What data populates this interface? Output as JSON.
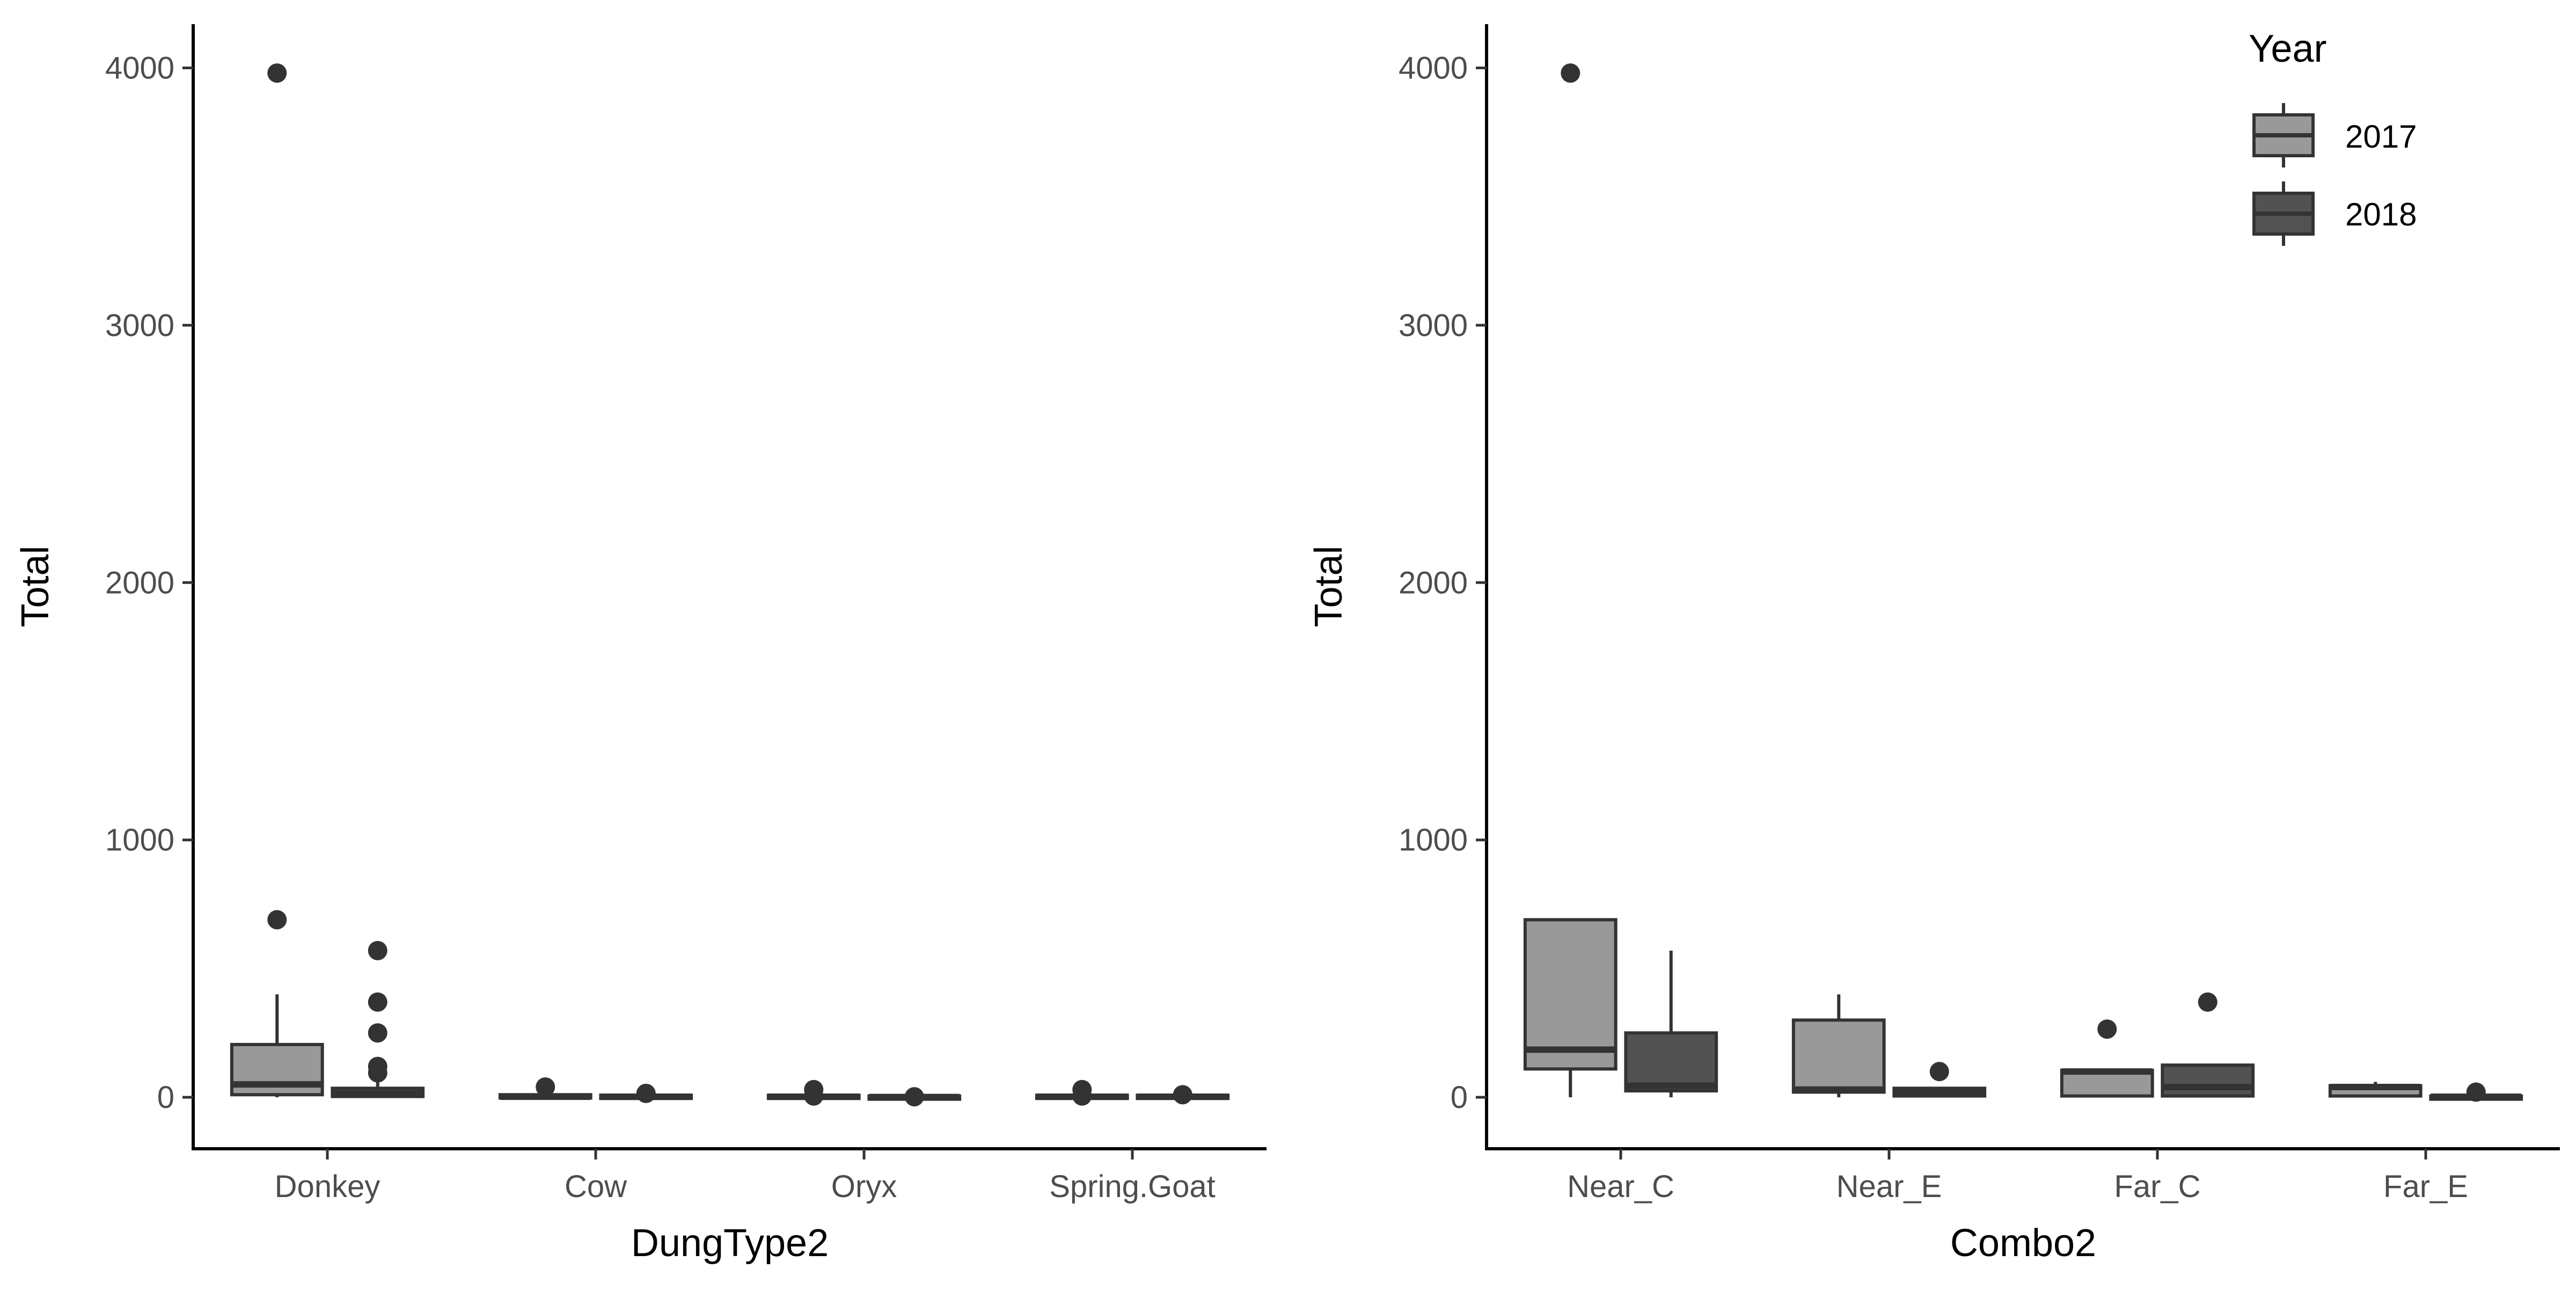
{
  "legend": {
    "title": "Year",
    "entries": [
      {
        "label": "2017",
        "color": "#999999"
      },
      {
        "label": "2018",
        "color": "#525252"
      }
    ],
    "placement": "top-right"
  },
  "chart_data": [
    {
      "type": "boxplot",
      "title": "",
      "xlabel": "DungType2",
      "ylabel": "Total",
      "ylim": [
        -200,
        4170
      ],
      "yticks": [
        0,
        1000,
        2000,
        3000,
        4000
      ],
      "grid": false,
      "categories": [
        "Donkey",
        "Cow",
        "Oryx",
        "Spring.Goat"
      ],
      "series": [
        {
          "name": "2017",
          "color": "#999999",
          "boxes": [
            {
              "min": 0,
              "q1": 10,
              "median": 50,
              "q3": 205,
              "max": 400,
              "outliers": [
                3980,
                690
              ]
            },
            {
              "min": 0,
              "q1": 0,
              "median": 2,
              "q3": 10,
              "max": 25,
              "outliers": [
                40
              ]
            },
            {
              "min": 0,
              "q1": 0,
              "median": 2,
              "q3": 8,
              "max": 20,
              "outliers": [
                30,
                5
              ]
            },
            {
              "min": 0,
              "q1": 0,
              "median": 2,
              "q3": 8,
              "max": 20,
              "outliers": [
                30,
                5
              ]
            }
          ]
        },
        {
          "name": "2018",
          "color": "#525252",
          "boxes": [
            {
              "min": 0,
              "q1": 3,
              "median": 15,
              "q3": 35,
              "max": 60,
              "outliers": [
                570,
                370,
                250,
                120,
                95
              ]
            },
            {
              "min": 0,
              "q1": 0,
              "median": 2,
              "q3": 8,
              "max": 12,
              "outliers": [
                15
              ]
            },
            {
              "min": 0,
              "q1": 0,
              "median": 1,
              "q3": 5,
              "max": 10,
              "outliers": [
                2
              ]
            },
            {
              "min": 0,
              "q1": 0,
              "median": 2,
              "q3": 8,
              "max": 12,
              "outliers": [
                10
              ]
            }
          ]
        }
      ]
    },
    {
      "type": "boxplot",
      "title": "",
      "xlabel": "Combo2",
      "ylabel": "Total",
      "ylim": [
        -200,
        4170
      ],
      "yticks": [
        0,
        1000,
        2000,
        3000,
        4000
      ],
      "grid": false,
      "categories": [
        "Near_C",
        "Near_E",
        "Far_C",
        "Far_E"
      ],
      "series": [
        {
          "name": "2017",
          "color": "#999999",
          "boxes": [
            {
              "min": 0,
              "q1": 110,
              "median": 185,
              "q3": 690,
              "max": 690,
              "outliers": [
                3980
              ]
            },
            {
              "min": 0,
              "q1": 20,
              "median": 30,
              "q3": 300,
              "max": 400,
              "outliers": []
            },
            {
              "min": 0,
              "q1": 5,
              "median": 100,
              "q3": 105,
              "max": 105,
              "outliers": [
                265
              ]
            },
            {
              "min": 0,
              "q1": 5,
              "median": 40,
              "q3": 45,
              "max": 60,
              "outliers": []
            }
          ]
        },
        {
          "name": "2018",
          "color": "#525252",
          "boxes": [
            {
              "min": 0,
              "q1": 25,
              "median": 45,
              "q3": 250,
              "max": 570,
              "outliers": []
            },
            {
              "min": 0,
              "q1": 5,
              "median": 20,
              "q3": 35,
              "max": 40,
              "outliers": [
                100
              ]
            },
            {
              "min": 0,
              "q1": 5,
              "median": 40,
              "q3": 125,
              "max": 125,
              "outliers": [
                370
              ]
            },
            {
              "min": 0,
              "q1": 0,
              "median": 2,
              "q3": 5,
              "max": 10,
              "outliers": [
                20
              ]
            }
          ]
        }
      ]
    }
  ]
}
